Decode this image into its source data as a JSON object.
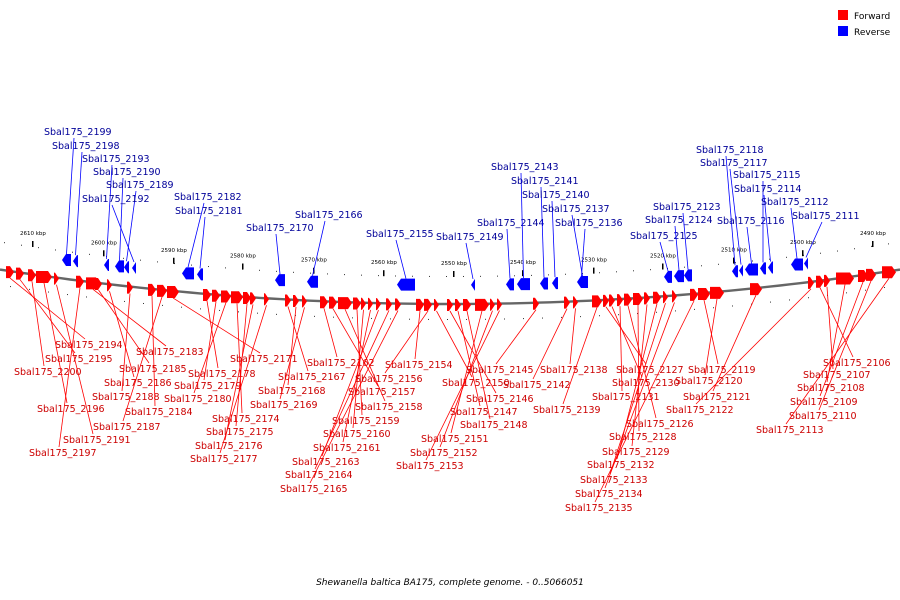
{
  "legend": {
    "items": [
      {
        "label": "Forward",
        "color": "#ff0000"
      },
      {
        "label": "Reverse",
        "color": "#0000ff"
      }
    ]
  },
  "caption": "Shewanella baltica BA175, complete genome. - 0..5066051",
  "colors": {
    "forward": "#ff0000",
    "reverse": "#0000ff",
    "forward_label": "#cc0000",
    "reverse_label": "#000099",
    "backbone": "#666666"
  },
  "scale_ticks": [
    "2610 kbp",
    "2600 kbp",
    "2590 kbp",
    "2580 kbp",
    "2570 kbp",
    "2560 kbp",
    "2550 kbp",
    "2540 kbp",
    "2530 kbp",
    "2520 kbp",
    "2510 kbp",
    "2500 kbp",
    "2490 kbp"
  ],
  "reverse_genes": [
    "Sbal175_2199",
    "Sbal175_2198",
    "Sbal175_2193",
    "Sbal175_2190",
    "Sbal175_2189",
    "Sbal175_2192",
    "Sbal175_2182",
    "Sbal175_2181",
    "Sbal175_2170",
    "Sbal175_2166",
    "Sbal175_2155",
    "Sbal175_2149",
    "Sbal175_2144",
    "Sbal175_2143",
    "Sbal175_2141",
    "Sbal175_2140",
    "Sbal175_2137",
    "Sbal175_2136",
    "Sbal175_2125",
    "Sbal175_2124",
    "Sbal175_2123",
    "Sbal175_2118",
    "Sbal175_2117",
    "Sbal175_2116",
    "Sbal175_2115",
    "Sbal175_2114",
    "Sbal175_2112",
    "Sbal175_2111"
  ],
  "forward_genes": [
    "Sbal175_2194",
    "Sbal175_2195",
    "Sbal175_2200",
    "Sbal175_2196",
    "Sbal175_2191",
    "Sbal175_2197",
    "Sbal175_2183",
    "Sbal175_2185",
    "Sbal175_2186",
    "Sbal175_2188",
    "Sbal175_2184",
    "Sbal175_2187",
    "Sbal175_2171",
    "Sbal175_2178",
    "Sbal175_2179",
    "Sbal175_2180",
    "Sbal175_2174",
    "Sbal175_2175",
    "Sbal175_2176",
    "Sbal175_2177",
    "Sbal175_2167",
    "Sbal175_2168",
    "Sbal175_2169",
    "Sbal175_2162",
    "Sbal175_2157",
    "Sbal175_2158",
    "Sbal175_2159",
    "Sbal175_2160",
    "Sbal175_2161",
    "Sbal175_2163",
    "Sbal175_2164",
    "Sbal175_2165",
    "Sbal175_2154",
    "Sbal175_2156",
    "Sbal175_2150",
    "Sbal175_2146",
    "Sbal175_2147",
    "Sbal175_2148",
    "Sbal175_2151",
    "Sbal175_2152",
    "Sbal175_2153",
    "Sbal175_2145",
    "Sbal175_2142",
    "Sbal175_2138",
    "Sbal175_2139",
    "Sbal175_2127",
    "Sbal175_2130",
    "Sbal175_2131",
    "Sbal175_2126",
    "Sbal175_2128",
    "Sbal175_2129",
    "Sbal175_2132",
    "Sbal175_2133",
    "Sbal175_2134",
    "Sbal175_2135",
    "Sbal175_2119",
    "Sbal175_2120",
    "Sbal175_2121",
    "Sbal175_2122",
    "Sbal175_2106",
    "Sbal175_2107",
    "Sbal175_2108",
    "Sbal175_2109",
    "Sbal175_2110",
    "Sbal175_2113"
  ]
}
